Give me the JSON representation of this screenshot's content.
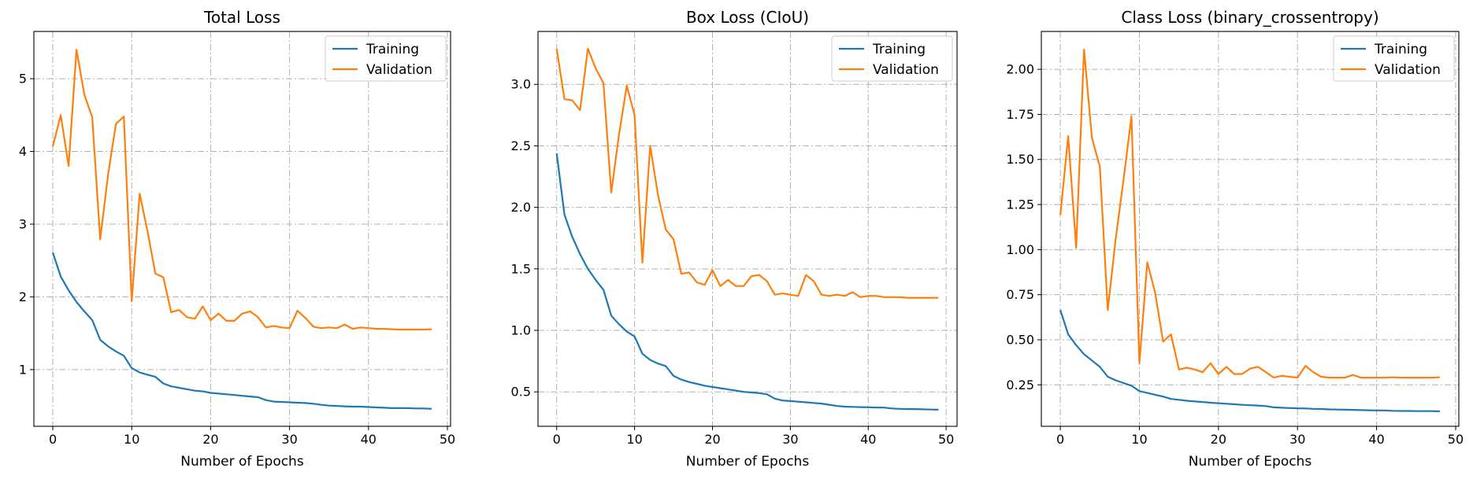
{
  "chart_data": [
    {
      "type": "line",
      "title": "Total Loss",
      "xlabel": "Number of Epochs",
      "ylabel": "",
      "xlim": [
        -2.4,
        50.4
      ],
      "ylim": [
        0.22,
        5.65
      ],
      "xticks": [
        0,
        10,
        20,
        30,
        40,
        50
      ],
      "yticks": [
        1,
        2,
        3,
        4,
        5
      ],
      "ytick_labels": [
        "1",
        "2",
        "3",
        "4",
        "5"
      ],
      "grid": true,
      "legend_position": "top-right",
      "series": [
        {
          "name": "Training",
          "color": "#1f77b4",
          "x": [
            0,
            1,
            2,
            3,
            4,
            5,
            6,
            7,
            8,
            9,
            10,
            11,
            12,
            13,
            14,
            15,
            16,
            17,
            18,
            19,
            20,
            21,
            22,
            23,
            24,
            25,
            26,
            27,
            28,
            29,
            30,
            31,
            32,
            33,
            34,
            35,
            36,
            37,
            38,
            39,
            40,
            41,
            42,
            43,
            44,
            45,
            46,
            47,
            48
          ],
          "values": [
            2.61,
            2.28,
            2.09,
            1.93,
            1.8,
            1.68,
            1.41,
            1.32,
            1.25,
            1.19,
            1.02,
            0.96,
            0.93,
            0.9,
            0.81,
            0.77,
            0.75,
            0.73,
            0.71,
            0.7,
            0.68,
            0.67,
            0.66,
            0.65,
            0.64,
            0.63,
            0.62,
            0.58,
            0.56,
            0.555,
            0.55,
            0.545,
            0.54,
            0.53,
            0.515,
            0.505,
            0.5,
            0.495,
            0.49,
            0.49,
            0.485,
            0.48,
            0.475,
            0.47,
            0.47,
            0.47,
            0.465,
            0.465,
            0.46
          ]
        },
        {
          "name": "Validation",
          "color": "#ff7f0e",
          "x": [
            0,
            1,
            2,
            3,
            4,
            5,
            6,
            7,
            8,
            9,
            10,
            11,
            12,
            13,
            14,
            15,
            16,
            17,
            18,
            19,
            20,
            21,
            22,
            23,
            24,
            25,
            26,
            27,
            28,
            29,
            30,
            31,
            32,
            33,
            34,
            35,
            36,
            37,
            38,
            39,
            40,
            41,
            42,
            43,
            44,
            45,
            46,
            47,
            48
          ],
          "values": [
            4.07,
            4.5,
            3.8,
            5.4,
            4.78,
            4.47,
            2.79,
            3.68,
            4.38,
            4.48,
            1.94,
            3.42,
            2.9,
            2.32,
            2.27,
            1.79,
            1.82,
            1.72,
            1.7,
            1.87,
            1.68,
            1.77,
            1.67,
            1.67,
            1.77,
            1.8,
            1.72,
            1.58,
            1.6,
            1.58,
            1.57,
            1.81,
            1.71,
            1.59,
            1.57,
            1.58,
            1.57,
            1.62,
            1.56,
            1.58,
            1.57,
            1.56,
            1.56,
            1.555,
            1.55,
            1.55,
            1.55,
            1.55,
            1.555
          ]
        }
      ]
    },
    {
      "type": "line",
      "title": "Box Loss (CIoU)",
      "xlabel": "Number of Epochs",
      "ylabel": "",
      "xlim": [
        -2.4,
        51.4
      ],
      "ylim": [
        0.22,
        3.43
      ],
      "xticks": [
        0,
        10,
        20,
        30,
        40,
        50
      ],
      "yticks": [
        0.5,
        1.0,
        1.5,
        2.0,
        2.5,
        3.0
      ],
      "ytick_labels": [
        "0.5",
        "1.0",
        "1.5",
        "2.0",
        "2.5",
        "3.0"
      ],
      "grid": true,
      "legend_position": "top-right",
      "series": [
        {
          "name": "Training",
          "color": "#1f77b4",
          "x": [
            0,
            1,
            2,
            3,
            4,
            5,
            6,
            7,
            8,
            9,
            10,
            11,
            12,
            13,
            14,
            15,
            16,
            17,
            18,
            19,
            20,
            21,
            22,
            23,
            24,
            25,
            26,
            27,
            28,
            29,
            30,
            31,
            32,
            33,
            34,
            35,
            36,
            37,
            38,
            39,
            40,
            41,
            42,
            43,
            44,
            45,
            46,
            47,
            48,
            49
          ],
          "values": [
            2.44,
            1.94,
            1.76,
            1.62,
            1.5,
            1.41,
            1.33,
            1.12,
            1.05,
            0.99,
            0.95,
            0.81,
            0.76,
            0.73,
            0.71,
            0.63,
            0.6,
            0.58,
            0.565,
            0.55,
            0.54,
            0.53,
            0.52,
            0.51,
            0.5,
            0.495,
            0.49,
            0.48,
            0.445,
            0.43,
            0.425,
            0.42,
            0.415,
            0.41,
            0.405,
            0.395,
            0.385,
            0.38,
            0.378,
            0.376,
            0.375,
            0.373,
            0.372,
            0.365,
            0.362,
            0.36,
            0.36,
            0.358,
            0.356,
            0.355
          ]
        },
        {
          "name": "Validation",
          "color": "#ff7f0e",
          "x": [
            0,
            1,
            2,
            3,
            4,
            5,
            6,
            7,
            8,
            9,
            10,
            11,
            12,
            13,
            14,
            15,
            16,
            17,
            18,
            19,
            20,
            21,
            22,
            23,
            24,
            25,
            26,
            27,
            28,
            29,
            30,
            31,
            32,
            33,
            34,
            35,
            36,
            37,
            38,
            39,
            40,
            41,
            42,
            43,
            44,
            45,
            46,
            47,
            48,
            49
          ],
          "values": [
            3.29,
            2.88,
            2.87,
            2.79,
            3.29,
            3.13,
            3.01,
            2.12,
            2.59,
            2.99,
            2.75,
            1.55,
            2.5,
            2.1,
            1.82,
            1.74,
            1.46,
            1.47,
            1.39,
            1.37,
            1.49,
            1.36,
            1.41,
            1.36,
            1.36,
            1.44,
            1.45,
            1.4,
            1.29,
            1.3,
            1.29,
            1.28,
            1.45,
            1.4,
            1.29,
            1.28,
            1.29,
            1.28,
            1.31,
            1.27,
            1.28,
            1.28,
            1.27,
            1.27,
            1.27,
            1.265,
            1.265,
            1.265,
            1.265,
            1.265
          ]
        }
      ]
    },
    {
      "type": "line",
      "title": "Class Loss (binary_crossentropy)",
      "xlabel": "Number of Epochs",
      "ylabel": "",
      "xlim": [
        -2.4,
        50.4
      ],
      "ylim": [
        0.02,
        2.21
      ],
      "xticks": [
        0,
        10,
        20,
        30,
        40,
        50
      ],
      "yticks": [
        0.25,
        0.5,
        0.75,
        1.0,
        1.25,
        1.5,
        1.75,
        2.0
      ],
      "ytick_labels": [
        "0.25",
        "0.50",
        "0.75",
        "1.00",
        "1.25",
        "1.50",
        "1.75",
        "2.00"
      ],
      "grid": true,
      "legend_position": "top-right",
      "series": [
        {
          "name": "Training",
          "color": "#1f77b4",
          "x": [
            0,
            1,
            2,
            3,
            4,
            5,
            6,
            7,
            8,
            9,
            10,
            11,
            12,
            13,
            14,
            15,
            16,
            17,
            18,
            19,
            20,
            21,
            22,
            23,
            24,
            25,
            26,
            27,
            28,
            29,
            30,
            31,
            32,
            33,
            34,
            35,
            36,
            37,
            38,
            39,
            40,
            41,
            42,
            43,
            44,
            45,
            46,
            47,
            48
          ],
          "values": [
            0.665,
            0.53,
            0.47,
            0.42,
            0.385,
            0.35,
            0.295,
            0.275,
            0.26,
            0.245,
            0.215,
            0.205,
            0.195,
            0.185,
            0.172,
            0.167,
            0.162,
            0.158,
            0.155,
            0.151,
            0.148,
            0.145,
            0.142,
            0.139,
            0.137,
            0.135,
            0.132,
            0.125,
            0.123,
            0.121,
            0.12,
            0.119,
            0.117,
            0.116,
            0.114,
            0.113,
            0.112,
            0.111,
            0.11,
            0.109,
            0.108,
            0.108,
            0.106,
            0.105,
            0.105,
            0.104,
            0.104,
            0.104,
            0.103
          ]
        },
        {
          "name": "Validation",
          "color": "#ff7f0e",
          "x": [
            0,
            1,
            2,
            3,
            4,
            5,
            6,
            7,
            8,
            9,
            10,
            11,
            12,
            13,
            14,
            15,
            16,
            17,
            18,
            19,
            20,
            21,
            22,
            23,
            24,
            25,
            26,
            27,
            28,
            29,
            30,
            31,
            32,
            33,
            34,
            35,
            36,
            37,
            38,
            39,
            40,
            41,
            42,
            43,
            44,
            45,
            46,
            47,
            48
          ],
          "values": [
            1.19,
            1.63,
            1.01,
            2.11,
            1.62,
            1.46,
            0.665,
            1.06,
            1.39,
            1.74,
            0.37,
            0.93,
            0.76,
            0.49,
            0.53,
            0.335,
            0.345,
            0.335,
            0.32,
            0.37,
            0.31,
            0.35,
            0.31,
            0.31,
            0.34,
            0.35,
            0.32,
            0.29,
            0.3,
            0.295,
            0.29,
            0.355,
            0.32,
            0.295,
            0.29,
            0.29,
            0.29,
            0.305,
            0.29,
            0.29,
            0.29,
            0.29,
            0.292,
            0.29,
            0.29,
            0.29,
            0.29,
            0.29,
            0.292
          ]
        }
      ]
    }
  ]
}
